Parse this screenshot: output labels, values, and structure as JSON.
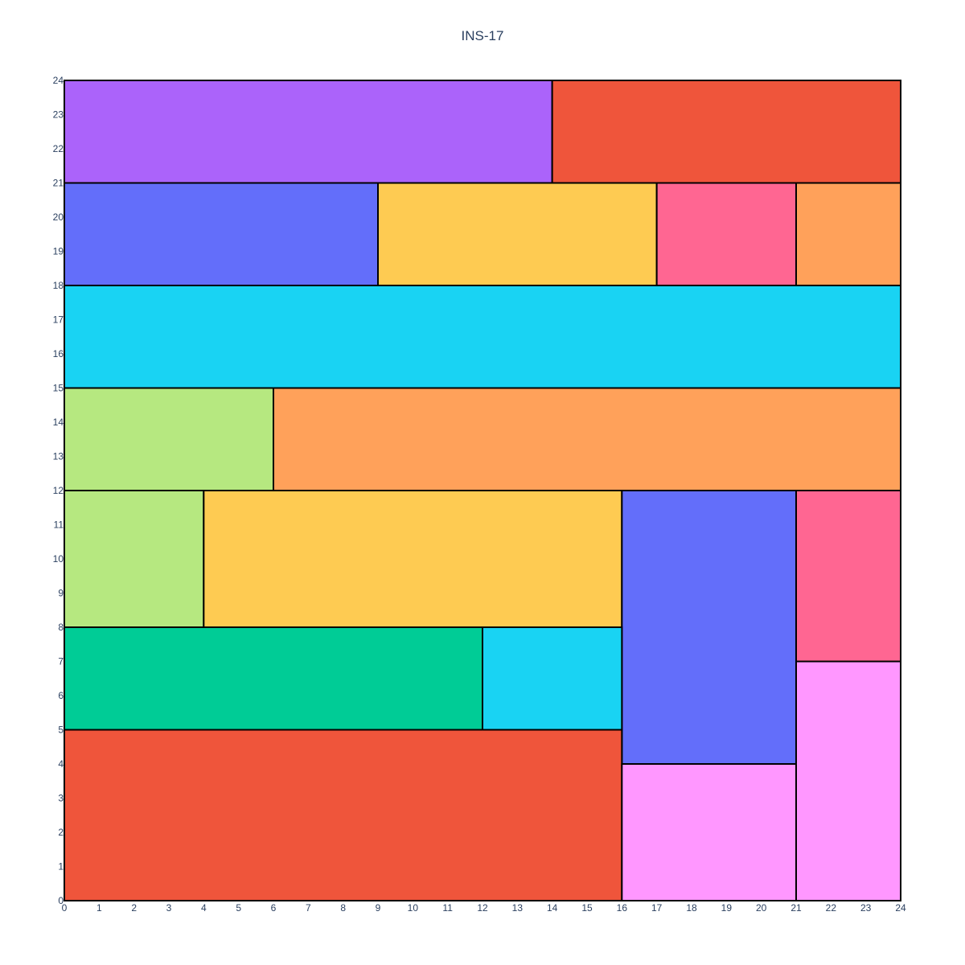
{
  "chart_data": {
    "type": "treemap",
    "title": "INS-17",
    "xlim": [
      0,
      24
    ],
    "ylim": [
      0,
      24
    ],
    "xticks": [
      0,
      1,
      2,
      3,
      4,
      5,
      6,
      7,
      8,
      9,
      10,
      11,
      12,
      13,
      14,
      15,
      16,
      17,
      18,
      19,
      20,
      21,
      22,
      23,
      24
    ],
    "yticks": [
      0,
      1,
      2,
      3,
      4,
      5,
      6,
      7,
      8,
      9,
      10,
      11,
      12,
      13,
      14,
      15,
      16,
      17,
      18,
      19,
      20,
      21,
      22,
      23,
      24
    ],
    "grid": false,
    "legend": "none",
    "rectangles": [
      {
        "x0": 0,
        "x1": 14,
        "y0": 21,
        "y1": 24,
        "color": "#ab63fa"
      },
      {
        "x0": 14,
        "x1": 24,
        "y0": 21,
        "y1": 24,
        "color": "#ef553b"
      },
      {
        "x0": 0,
        "x1": 9,
        "y0": 18,
        "y1": 21,
        "color": "#636efa"
      },
      {
        "x0": 9,
        "x1": 17,
        "y0": 18,
        "y1": 21,
        "color": "#fecb52"
      },
      {
        "x0": 17,
        "x1": 21,
        "y0": 18,
        "y1": 21,
        "color": "#ff6692"
      },
      {
        "x0": 21,
        "x1": 24,
        "y0": 18,
        "y1": 21,
        "color": "#ffa15a"
      },
      {
        "x0": 0,
        "x1": 24,
        "y0": 15,
        "y1": 18,
        "color": "#19d3f3"
      },
      {
        "x0": 0,
        "x1": 6,
        "y0": 12,
        "y1": 15,
        "color": "#b6e880"
      },
      {
        "x0": 6,
        "x1": 24,
        "y0": 12,
        "y1": 15,
        "color": "#ffa15a"
      },
      {
        "x0": 0,
        "x1": 4,
        "y0": 8,
        "y1": 12,
        "color": "#b6e880"
      },
      {
        "x0": 4,
        "x1": 16,
        "y0": 8,
        "y1": 12,
        "color": "#fecb52"
      },
      {
        "x0": 16,
        "x1": 21,
        "y0": 4,
        "y1": 12,
        "color": "#636efa"
      },
      {
        "x0": 21,
        "x1": 24,
        "y0": 7,
        "y1": 12,
        "color": "#ff6692"
      },
      {
        "x0": 0,
        "x1": 12,
        "y0": 5,
        "y1": 8,
        "color": "#00cc96"
      },
      {
        "x0": 12,
        "x1": 16,
        "y0": 5,
        "y1": 8,
        "color": "#19d3f3"
      },
      {
        "x0": 0,
        "x1": 16,
        "y0": 0,
        "y1": 5,
        "color": "#ef553b"
      },
      {
        "x0": 16,
        "x1": 21,
        "y0": 0,
        "y1": 4,
        "color": "#ff97ff"
      },
      {
        "x0": 21,
        "x1": 24,
        "y0": 0,
        "y1": 7,
        "color": "#ff97ff"
      }
    ]
  }
}
